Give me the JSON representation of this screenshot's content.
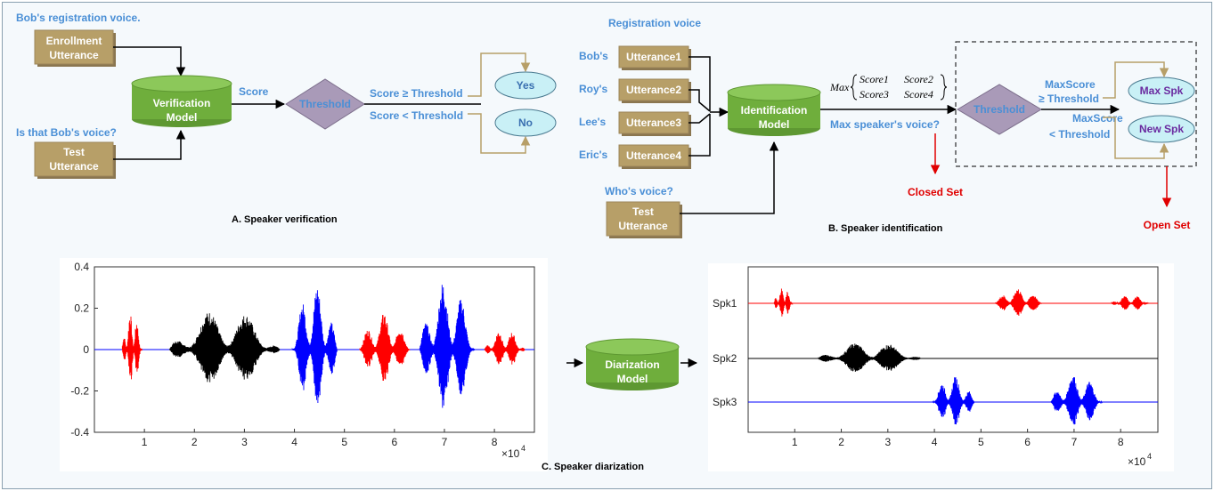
{
  "panel_a": {
    "caption": "A.  Speaker verification",
    "registration_label": "Bob's registration voice.",
    "test_question": "Is that Bob's voice?",
    "enrollment_line1": "Enrollment",
    "enrollment_line2": "Utterance",
    "test_line1": "Test",
    "test_line2": "Utterance",
    "model_line1": "Verification",
    "model_line2": "Model",
    "score_label": "Score",
    "threshold": "Threshold",
    "ge_label": "Score ≥ Threshold",
    "lt_label": "Score <  Threshold",
    "yes": "Yes",
    "no": "No"
  },
  "panel_b": {
    "caption": "B.  Speaker identification",
    "registration_title": "Registration voice",
    "speakers": [
      "Bob's",
      "Roy's",
      "Lee's",
      "Eric's"
    ],
    "utterances": [
      "Utterance1",
      "Utterance2",
      "Utterance3",
      "Utterance4"
    ],
    "who_question": "Who's voice?",
    "test_line1": "Test",
    "test_line2": "Utterance",
    "model_line1": "Identification",
    "model_line2": "Model",
    "max_label": "Max",
    "scores": [
      "Score1",
      "Score2",
      "Score3",
      "Score4"
    ],
    "max_voice_label": "Max speaker's voice?",
    "threshold": "Threshold",
    "max_ge_line1": "MaxScore",
    "max_ge_line2": "≥ Threshold",
    "max_lt_line1": "MaxScore",
    "max_lt_line2": "<  Threshold",
    "max_spk": "Max Spk",
    "new_spk": "New Spk",
    "closed_set": "Closed Set",
    "open_set": "Open Set"
  },
  "panel_c": {
    "caption": "C.  Speaker diarization",
    "model_line1": "Diarization",
    "model_line2": "Model",
    "left_yticks": [
      "0.4",
      "0.2",
      "0",
      "-0.2",
      "-0.4"
    ],
    "xticks": [
      "1",
      "2",
      "3",
      "4",
      "5",
      "6",
      "7",
      "8"
    ],
    "x_multiplier": "×10",
    "x_exponent": "4",
    "right_labels": [
      "Spk1",
      "Spk2",
      "Spk3"
    ]
  },
  "colors": {
    "speaker1": "#ff0000",
    "speaker2": "#000000",
    "speaker3": "#0000ff",
    "box": "#b79f68",
    "model": "#6fae3c",
    "decision": "#a99ab8",
    "oval": "#c9f0f6",
    "label": "#4a8fd6"
  },
  "chart_data": {
    "type": "line",
    "xlim": [
      0,
      8.8
    ],
    "x_multiplier": "×10^4",
    "left_ylim": [
      -0.4,
      0.4
    ],
    "segments": [
      {
        "speaker": "Spk1",
        "start": 0.55,
        "end": 0.95,
        "peak": 0.19
      },
      {
        "speaker": "Spk2",
        "start": 1.5,
        "end": 3.7,
        "peak": 0.2
      },
      {
        "speaker": "Spk3",
        "start": 3.95,
        "end": 4.85,
        "peak": 0.32
      },
      {
        "speaker": "Spk1",
        "start": 5.3,
        "end": 6.3,
        "peak": 0.18
      },
      {
        "speaker": "Spk3",
        "start": 6.5,
        "end": 7.6,
        "peak": 0.34
      },
      {
        "speaker": "Spk1",
        "start": 7.8,
        "end": 8.6,
        "peak": 0.1
      }
    ]
  }
}
